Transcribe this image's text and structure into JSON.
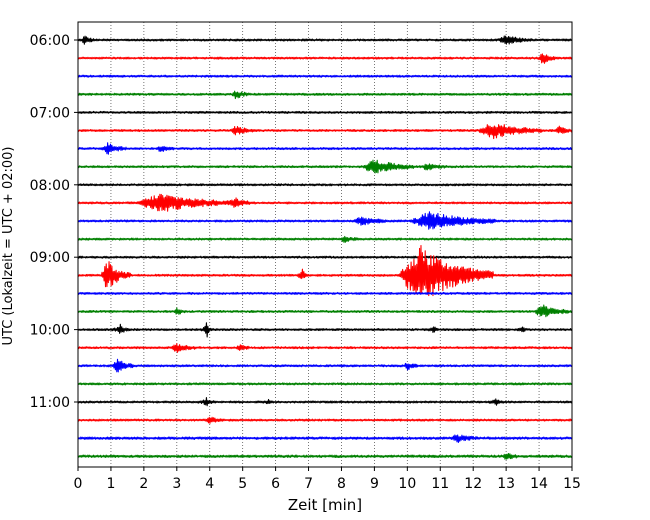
{
  "chart_data": {
    "type": "line",
    "title": "",
    "xlabel": "Zeit  [min]",
    "ylabel": "UTC (Lokalzeit = UTC + 02:00)",
    "xlim": [
      0,
      15
    ],
    "x_ticks": [
      "0",
      "1",
      "2",
      "3",
      "4",
      "5",
      "6",
      "7",
      "8",
      "9",
      "10",
      "11",
      "12",
      "13",
      "14",
      "15"
    ],
    "y_ticks": [
      "06:00",
      "07:00",
      "08:00",
      "09:00",
      "10:00",
      "11:00"
    ],
    "trace_interval_min": 15,
    "start_time": "06:00",
    "trace_count": 24,
    "grid": {
      "x": true,
      "y": false,
      "style": "dotted"
    },
    "colors": [
      "#000000",
      "#ff0000",
      "#0000ff",
      "#008000"
    ],
    "series": [
      {
        "time": "06:00",
        "color": "#000000",
        "noise": 1.0,
        "events": [
          {
            "t": 0.2,
            "amp": 4,
            "dur": 0.3,
            "kind": "burst"
          },
          {
            "t": 13.0,
            "amp": 4,
            "dur": 0.8,
            "kind": "burst"
          }
        ]
      },
      {
        "time": "06:15",
        "color": "#ff0000",
        "noise": 1.0,
        "events": [
          {
            "t": 14.1,
            "amp": 6,
            "dur": 0.4,
            "kind": "burst"
          }
        ]
      },
      {
        "time": "06:30",
        "color": "#0000ff",
        "noise": 1.0,
        "events": []
      },
      {
        "time": "06:45",
        "color": "#008000",
        "noise": 1.0,
        "events": [
          {
            "t": 4.8,
            "amp": 4,
            "dur": 0.4,
            "kind": "burst"
          }
        ]
      },
      {
        "time": "07:00",
        "color": "#000000",
        "noise": 1.0,
        "events": []
      },
      {
        "time": "07:15",
        "color": "#ff0000",
        "noise": 1.0,
        "events": [
          {
            "t": 4.8,
            "amp": 4,
            "dur": 0.6,
            "kind": "burst"
          },
          {
            "t": 12.6,
            "amp": 8,
            "dur": 1.5,
            "kind": "burst"
          },
          {
            "t": 14.6,
            "amp": 4,
            "dur": 0.4,
            "kind": "burst"
          }
        ]
      },
      {
        "time": "07:30",
        "color": "#0000ff",
        "noise": 1.0,
        "events": [
          {
            "t": 0.9,
            "amp": 5,
            "dur": 0.6,
            "kind": "burst"
          },
          {
            "t": 2.5,
            "amp": 3,
            "dur": 0.4,
            "kind": "burst"
          }
        ]
      },
      {
        "time": "07:45",
        "color": "#008000",
        "noise": 1.0,
        "events": [
          {
            "t": 9.0,
            "amp": 7,
            "dur": 1.2,
            "kind": "burst"
          },
          {
            "t": 10.6,
            "amp": 3,
            "dur": 0.6,
            "kind": "burst"
          }
        ]
      },
      {
        "time": "08:00",
        "color": "#000000",
        "noise": 1.0,
        "events": []
      },
      {
        "time": "08:15",
        "color": "#ff0000",
        "noise": 1.0,
        "events": [
          {
            "t": 2.5,
            "amp": 9,
            "dur": 2.4,
            "kind": "burst"
          },
          {
            "t": 4.8,
            "amp": 4,
            "dur": 0.6,
            "kind": "burst"
          }
        ]
      },
      {
        "time": "08:30",
        "color": "#0000ff",
        "noise": 1.0,
        "events": [
          {
            "t": 8.6,
            "amp": 4,
            "dur": 0.8,
            "kind": "burst"
          },
          {
            "t": 10.7,
            "amp": 9,
            "dur": 2.0,
            "kind": "burst"
          }
        ]
      },
      {
        "time": "08:45",
        "color": "#008000",
        "noise": 1.0,
        "events": [
          {
            "t": 8.1,
            "amp": 3,
            "dur": 0.4,
            "kind": "burst"
          }
        ]
      },
      {
        "time": "09:00",
        "color": "#000000",
        "noise": 1.0,
        "events": []
      },
      {
        "time": "09:15",
        "color": "#ff0000",
        "noise": 1.0,
        "events": [
          {
            "t": 0.9,
            "amp": 15,
            "dur": 0.7,
            "kind": "burst"
          },
          {
            "t": 6.8,
            "amp": 9,
            "dur": 0.2,
            "kind": "spike"
          },
          {
            "t": 10.4,
            "amp": 30,
            "dur": 2.2,
            "kind": "burst"
          }
        ]
      },
      {
        "time": "09:30",
        "color": "#0000ff",
        "noise": 1.0,
        "events": []
      },
      {
        "time": "09:45",
        "color": "#008000",
        "noise": 1.0,
        "events": [
          {
            "t": 3.0,
            "amp": 3,
            "dur": 0.3,
            "kind": "burst"
          },
          {
            "t": 14.1,
            "amp": 7,
            "dur": 0.8,
            "kind": "burst"
          }
        ]
      },
      {
        "time": "10:00",
        "color": "#000000",
        "noise": 1.0,
        "events": [
          {
            "t": 1.3,
            "amp": 7,
            "dur": 0.3,
            "kind": "spike"
          },
          {
            "t": 3.9,
            "amp": 15,
            "dur": 0.15,
            "kind": "spike"
          },
          {
            "t": 10.8,
            "amp": 4,
            "dur": 0.2,
            "kind": "spike"
          },
          {
            "t": 13.5,
            "amp": 3,
            "dur": 0.2,
            "kind": "spike"
          }
        ]
      },
      {
        "time": "10:15",
        "color": "#ff0000",
        "noise": 1.0,
        "events": [
          {
            "t": 3.0,
            "amp": 4,
            "dur": 0.6,
            "kind": "burst"
          },
          {
            "t": 4.9,
            "amp": 3,
            "dur": 0.3,
            "kind": "burst"
          }
        ]
      },
      {
        "time": "10:30",
        "color": "#0000ff",
        "noise": 1.0,
        "events": [
          {
            "t": 1.2,
            "amp": 7,
            "dur": 0.5,
            "kind": "burst"
          },
          {
            "t": 10.0,
            "amp": 4,
            "dur": 0.3,
            "kind": "burst"
          }
        ]
      },
      {
        "time": "10:45",
        "color": "#008000",
        "noise": 1.0,
        "events": []
      },
      {
        "time": "11:00",
        "color": "#000000",
        "noise": 1.0,
        "events": [
          {
            "t": 3.9,
            "amp": 4,
            "dur": 0.3,
            "kind": "spike"
          },
          {
            "t": 5.8,
            "amp": 3,
            "dur": 0.2,
            "kind": "spike"
          },
          {
            "t": 12.7,
            "amp": 3,
            "dur": 0.3,
            "kind": "spike"
          }
        ]
      },
      {
        "time": "11:15",
        "color": "#ff0000",
        "noise": 1.0,
        "events": [
          {
            "t": 4.0,
            "amp": 3,
            "dur": 0.4,
            "kind": "burst"
          }
        ]
      },
      {
        "time": "11:30",
        "color": "#0000ff",
        "noise": 1.2,
        "events": [
          {
            "t": 11.5,
            "amp": 4,
            "dur": 0.6,
            "kind": "burst"
          }
        ]
      },
      {
        "time": "11:45",
        "color": "#008000",
        "noise": 1.2,
        "events": [
          {
            "t": 13.0,
            "amp": 3,
            "dur": 0.4,
            "kind": "burst"
          }
        ]
      }
    ]
  }
}
